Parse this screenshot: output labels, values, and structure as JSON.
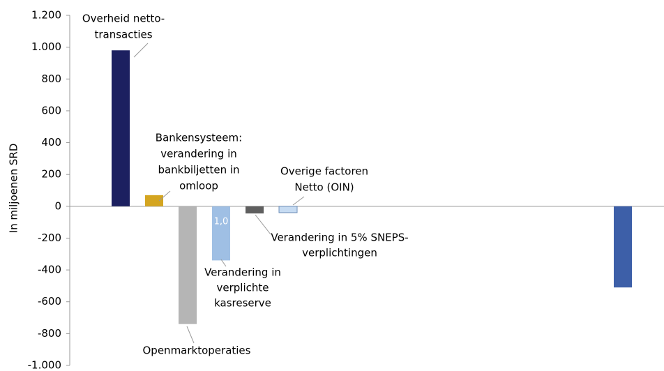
{
  "chart_data": {
    "type": "bar",
    "y_label": "In miljoenen SRD",
    "categories": [
      [
        "Overheid netto-",
        "transacties"
      ],
      [
        "Bankensysteem:",
        "verandering in",
        "bankbiljetten in",
        "omloop"
      ],
      [
        "Openmarktoperaties"
      ],
      [
        "Verandering in",
        "verplichte",
        "kasreserve"
      ],
      [
        "Verandering in 5% SNEPS-",
        "verplichtingen"
      ],
      [
        "Overige factoren",
        "Netto (OIN)"
      ],
      null,
      null,
      null,
      null,
      null,
      null,
      null,
      null,
      null,
      null
    ],
    "values": [
      980,
      70,
      -740,
      -340,
      -45,
      -40,
      null,
      null,
      null,
      null,
      null,
      null,
      null,
      null,
      null,
      -510
    ],
    "colors": [
      "#1c2060",
      "#d4a520",
      "#b5b5b5",
      "#9fbfe4",
      "#5f5f5f",
      "#c6dbf2",
      null,
      null,
      null,
      null,
      null,
      null,
      null,
      null,
      null,
      "#3d5fa8"
    ],
    "annotations": [
      "1,0"
    ],
    "ylim": [
      -1000,
      1200
    ],
    "yticks": [
      {
        "value": -1000,
        "label": "-1.000"
      },
      -800,
      -600,
      -400,
      -200,
      0,
      200,
      400,
      600,
      800,
      {
        "value": 1000,
        "label": "1.000"
      },
      {
        "value": 1200,
        "label": "1.200"
      }
    ]
  }
}
